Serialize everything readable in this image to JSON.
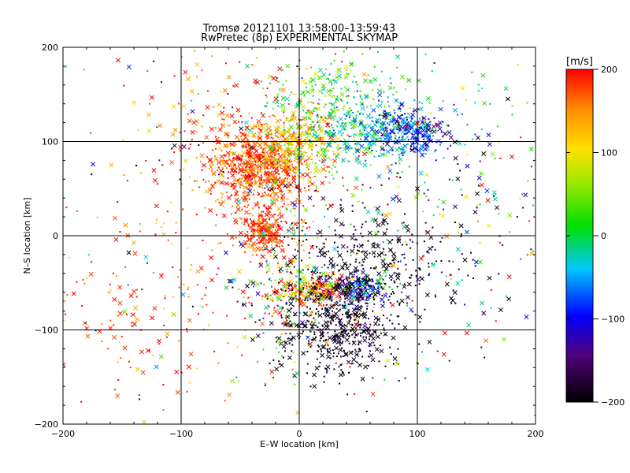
{
  "chart_data": {
    "type": "scatter",
    "title": "Tromsø 20121101 13:58:00–13:59:43",
    "subtitle": "RwPretec (8p) EXPERIMENTAL SKYMAP",
    "xlabel": "E–W location [km]",
    "ylabel": "N–S location [km]",
    "xlim": [
      -200,
      200
    ],
    "ylim": [
      -200,
      200
    ],
    "xticks": [
      "−200",
      "−100",
      "0",
      "100",
      "200"
    ],
    "yticks": [
      "200",
      "100",
      "0",
      "−100",
      "−200"
    ],
    "grid": true,
    "marker_types": [
      "x",
      "dot"
    ],
    "colorbar": {
      "label": "[m/s]",
      "range": [
        -200,
        200
      ],
      "ticks": [
        "200",
        "100",
        "0",
        "−100",
        "−200"
      ],
      "colormap": "rainbow (black → purple → blue → cyan → green → yellow → orange → red)"
    },
    "clusters": [
      {
        "x": -32,
        "y": 72,
        "sx": 20,
        "sy": 22,
        "velocity": 175,
        "vspread": 30,
        "count": 700
      },
      {
        "x": -30,
        "y": 5,
        "sx": 10,
        "sy": 12,
        "velocity": 185,
        "vspread": 20,
        "count": 220
      },
      {
        "x": -50,
        "y": 100,
        "sx": 45,
        "sy": 55,
        "velocity": 170,
        "vspread": 45,
        "count": 260
      },
      {
        "x": 0,
        "y": 100,
        "sx": 18,
        "sy": 15,
        "velocity": 110,
        "vspread": 40,
        "count": 260
      },
      {
        "x": 30,
        "y": 130,
        "sx": 30,
        "sy": 35,
        "velocity": 15,
        "vspread": 40,
        "count": 320
      },
      {
        "x": 70,
        "y": 115,
        "sx": 28,
        "sy": 18,
        "velocity": -40,
        "vspread": 35,
        "count": 280
      },
      {
        "x": 95,
        "y": 110,
        "sx": 15,
        "sy": 12,
        "velocity": -100,
        "vspread": 30,
        "count": 180
      },
      {
        "x": 15,
        "y": -57,
        "sx": 20,
        "sy": 7,
        "velocity": 150,
        "vspread": 60,
        "count": 250
      },
      {
        "x": 50,
        "y": -57,
        "sx": 12,
        "sy": 8,
        "velocity": -90,
        "vspread": 60,
        "count": 200
      },
      {
        "x": 30,
        "y": -100,
        "sx": 25,
        "sy": 25,
        "velocity": -190,
        "vspread": 15,
        "count": 420
      },
      {
        "x": 60,
        "y": -35,
        "sx": 40,
        "sy": 35,
        "velocity": -195,
        "vspread": 10,
        "count": 340
      },
      {
        "x": -10,
        "y": -60,
        "sx": 20,
        "sy": 40,
        "velocity": 60,
        "vspread": 120,
        "count": 180
      },
      {
        "x": -130,
        "y": -80,
        "sx": 50,
        "sy": 50,
        "velocity": 175,
        "vspread": 35,
        "count": 160
      },
      {
        "x": 130,
        "y": 20,
        "sx": 50,
        "sy": 100,
        "velocity": -60,
        "vspread": 120,
        "count": 180
      },
      {
        "x": 0,
        "y": 0,
        "sx": 110,
        "sy": 110,
        "velocity": 0,
        "vspread": 200,
        "count": 350
      }
    ]
  }
}
